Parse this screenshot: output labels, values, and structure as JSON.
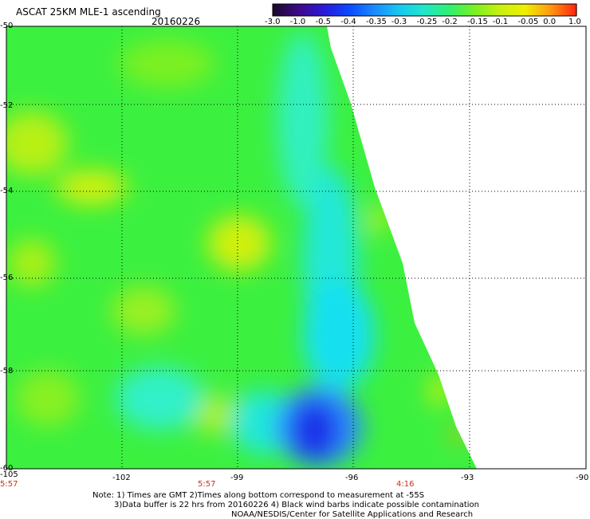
{
  "header": {
    "title": "ASCAT 25KM MLE-1 ascending",
    "date": "20160226"
  },
  "colorbar": {
    "labels": [
      "-3.0",
      "-1.0",
      "-0.5",
      "-0.4",
      "-0.35",
      "-0.3",
      "-0.25",
      "-0.2",
      "-0.15",
      "-0.1",
      "-0.05",
      "0.0",
      "1.0"
    ],
    "colors": [
      "#1a0a2e",
      "#3d0a8a",
      "#2a1ad8",
      "#0a4aff",
      "#1a8aff",
      "#18c8f0",
      "#20e8c8",
      "#30f070",
      "#7af020",
      "#c8f010",
      "#f0f000",
      "#ff9a10",
      "#ff2a10"
    ]
  },
  "map": {
    "lat_labels": [
      "-50",
      "-52",
      "-54",
      "-56",
      "-58",
      "-60"
    ],
    "lon_labels": [
      "-105",
      "-102",
      "-99",
      "-96",
      "-93",
      "-90"
    ],
    "time_labels": [
      "5:57",
      "5:57",
      "4:16"
    ],
    "lon_range": [
      -105,
      -90
    ],
    "lat_range": [
      -60,
      -50
    ]
  },
  "notes": {
    "line1": "Note: 1) Times are GMT 2)Times along bottom correspond to measurement at -55S",
    "line2": "3)Data buffer is 22 hrs from 20160226 4) Black wind barbs indicate possible contamination",
    "line3": "NOAA/NESDIS/Center for Satellite Applications and Research"
  }
}
